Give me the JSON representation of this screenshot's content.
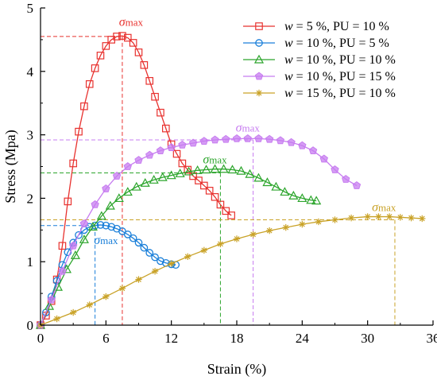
{
  "chart_data": {
    "type": "line",
    "xlabel": "Strain (%)",
    "ylabel": "Stress (Mpa)",
    "xlim": [
      0,
      36
    ],
    "ylim": [
      0,
      5
    ],
    "xticks": [
      "0",
      "6",
      "12",
      "18",
      "24",
      "30",
      "36"
    ],
    "yticks": [
      "0",
      "1",
      "2",
      "3",
      "4",
      "5"
    ],
    "grid": false,
    "legend_position": "top-right",
    "series": [
      {
        "name": "w = 5 %, PU = 10 %",
        "name_italic": "w",
        "name_rest": " = 5 %, PU = 10 %",
        "color": "#e8322f",
        "marker": "square",
        "x": [
          0.0,
          0.5,
          1.0,
          1.5,
          2.0,
          2.5,
          3.0,
          3.5,
          4.0,
          4.5,
          5.0,
          5.5,
          6.0,
          6.5,
          7.0,
          7.5,
          8.0,
          8.5,
          9.0,
          9.5,
          10.0,
          10.5,
          11.0,
          11.5,
          12.0,
          12.5,
          13.0,
          13.5,
          14.0,
          14.5,
          15.0,
          15.5,
          16.0,
          16.5,
          17.0,
          17.5
        ],
        "y": [
          0.0,
          0.15,
          0.38,
          0.72,
          1.25,
          1.95,
          2.55,
          3.05,
          3.45,
          3.8,
          4.05,
          4.25,
          4.4,
          4.5,
          4.55,
          4.56,
          4.53,
          4.45,
          4.3,
          4.1,
          3.85,
          3.6,
          3.35,
          3.1,
          2.85,
          2.7,
          2.55,
          2.45,
          2.35,
          2.28,
          2.2,
          2.12,
          2.02,
          1.9,
          1.8,
          1.73
        ]
      },
      {
        "name": "w = 10 %, PU = 5 %",
        "name_italic": "w",
        "name_rest": " = 10 %, PU = 5 %",
        "color": "#1a7fd9",
        "marker": "circle",
        "x": [
          0.0,
          0.5,
          1.0,
          1.5,
          2.0,
          2.5,
          3.0,
          3.5,
          4.0,
          4.5,
          5.0,
          5.5,
          6.0,
          6.5,
          7.0,
          7.5,
          8.0,
          8.5,
          9.0,
          9.5,
          10.0,
          10.5,
          11.0,
          11.5,
          12.0,
          12.4
        ],
        "y": [
          0.0,
          0.2,
          0.45,
          0.7,
          0.95,
          1.15,
          1.3,
          1.42,
          1.5,
          1.55,
          1.57,
          1.58,
          1.57,
          1.55,
          1.52,
          1.48,
          1.43,
          1.37,
          1.3,
          1.22,
          1.14,
          1.07,
          1.01,
          0.98,
          0.96,
          0.95
        ]
      },
      {
        "name": "w = 10 %, PU = 10 %",
        "name_italic": "w",
        "name_rest": " = 10 %, PU = 10 %",
        "color": "#2ca52c",
        "marker": "triangle",
        "x": [
          0.0,
          0.8,
          1.6,
          2.4,
          3.2,
          4.0,
          4.8,
          5.6,
          6.4,
          7.2,
          8.0,
          8.8,
          9.6,
          10.4,
          11.2,
          12.0,
          12.8,
          13.6,
          14.4,
          15.2,
          16.0,
          16.8,
          17.6,
          18.4,
          19.2,
          20.0,
          20.8,
          21.6,
          22.4,
          23.2,
          24.0,
          24.8,
          25.3
        ],
        "y": [
          0.0,
          0.3,
          0.6,
          0.88,
          1.1,
          1.35,
          1.55,
          1.72,
          1.88,
          2.0,
          2.1,
          2.18,
          2.24,
          2.29,
          2.33,
          2.36,
          2.39,
          2.42,
          2.44,
          2.45,
          2.46,
          2.46,
          2.45,
          2.43,
          2.38,
          2.32,
          2.25,
          2.18,
          2.1,
          2.04,
          2.0,
          1.97,
          1.96
        ]
      },
      {
        "name": "w = 10 %, PU = 15 %",
        "name_italic": "w",
        "name_rest": " = 10 %, PU = 15 %",
        "color": "#c77cf0",
        "marker": "pentagon",
        "x": [
          0.0,
          1.0,
          2.0,
          3.0,
          4.0,
          5.0,
          6.0,
          7.0,
          8.0,
          9.0,
          10.0,
          11.0,
          12.0,
          13.0,
          14.0,
          15.0,
          16.0,
          17.0,
          18.0,
          19.0,
          20.0,
          21.0,
          22.0,
          23.0,
          24.0,
          25.0,
          26.0,
          27.0,
          28.0,
          29.0
        ],
        "y": [
          0.0,
          0.4,
          0.85,
          1.25,
          1.6,
          1.9,
          2.15,
          2.35,
          2.5,
          2.6,
          2.68,
          2.75,
          2.8,
          2.84,
          2.87,
          2.9,
          2.92,
          2.93,
          2.94,
          2.94,
          2.94,
          2.93,
          2.91,
          2.88,
          2.83,
          2.75,
          2.62,
          2.45,
          2.3,
          2.2
        ]
      },
      {
        "name": "w = 15 %, PU = 10 %",
        "name_italic": "w",
        "name_rest": " = 15 %, PU = 10 %",
        "color": "#c9a227",
        "marker": "star",
        "x": [
          0.0,
          1.5,
          3.0,
          4.5,
          6.0,
          7.5,
          9.0,
          10.5,
          12.0,
          13.5,
          15.0,
          16.5,
          18.0,
          19.5,
          21.0,
          22.5,
          24.0,
          25.5,
          27.0,
          28.5,
          30.0,
          31.0,
          32.0,
          33.0,
          34.0,
          35.0
        ],
        "y": [
          0.0,
          0.1,
          0.2,
          0.32,
          0.45,
          0.58,
          0.72,
          0.85,
          0.97,
          1.08,
          1.18,
          1.28,
          1.36,
          1.43,
          1.49,
          1.54,
          1.59,
          1.63,
          1.66,
          1.69,
          1.71,
          1.71,
          1.71,
          1.7,
          1.69,
          1.68
        ]
      }
    ],
    "annotations": [
      {
        "text": "σmax",
        "series": 0,
        "peak_x": 7.5,
        "peak_y": 4.55,
        "label_x": 8.3,
        "label_y": 4.72
      },
      {
        "text": "σmax",
        "series": 1,
        "peak_x": 5.0,
        "peak_y": 1.57,
        "label_x": 6.0,
        "label_y": 1.28
      },
      {
        "text": "σmax",
        "series": 2,
        "peak_x": 16.5,
        "peak_y": 2.4,
        "label_x": 16.0,
        "label_y": 2.55
      },
      {
        "text": "σmax",
        "series": 3,
        "peak_x": 19.5,
        "peak_y": 2.92,
        "label_x": 19.0,
        "label_y": 3.05
      },
      {
        "text": "σmax",
        "series": 4,
        "peak_x": 32.5,
        "peak_y": 1.66,
        "label_x": 31.5,
        "label_y": 1.8
      }
    ]
  }
}
